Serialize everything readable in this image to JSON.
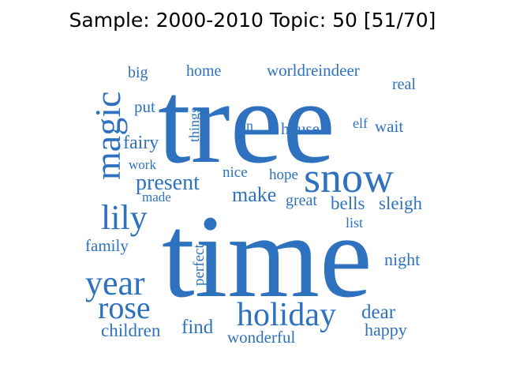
{
  "title": "Sample: 2000-2010 Topic: 50 [51/70]",
  "colors": {
    "word": "#2e72bf",
    "title": "#000000",
    "background": "#ffffff"
  },
  "words": [
    {
      "text": "tree"
    },
    {
      "text": "time"
    },
    {
      "text": "snow"
    },
    {
      "text": "magic"
    },
    {
      "text": "lily"
    },
    {
      "text": "year"
    },
    {
      "text": "rose"
    },
    {
      "text": "holiday"
    },
    {
      "text": "present"
    },
    {
      "text": "make"
    },
    {
      "text": "big"
    },
    {
      "text": "home"
    },
    {
      "text": "worldreindeer"
    },
    {
      "text": "real"
    },
    {
      "text": "put"
    },
    {
      "text": "things"
    },
    {
      "text": "fun"
    },
    {
      "text": "house"
    },
    {
      "text": "elf"
    },
    {
      "text": "wait"
    },
    {
      "text": "fairy"
    },
    {
      "text": "work"
    },
    {
      "text": "nice"
    },
    {
      "text": "hope"
    },
    {
      "text": "made"
    },
    {
      "text": "great"
    },
    {
      "text": "bells"
    },
    {
      "text": "sleigh"
    },
    {
      "text": "list"
    },
    {
      "text": "family"
    },
    {
      "text": "perfect"
    },
    {
      "text": "night"
    },
    {
      "text": "children"
    },
    {
      "text": "find"
    },
    {
      "text": "wonderful"
    },
    {
      "text": "dear"
    },
    {
      "text": "happy"
    }
  ]
}
